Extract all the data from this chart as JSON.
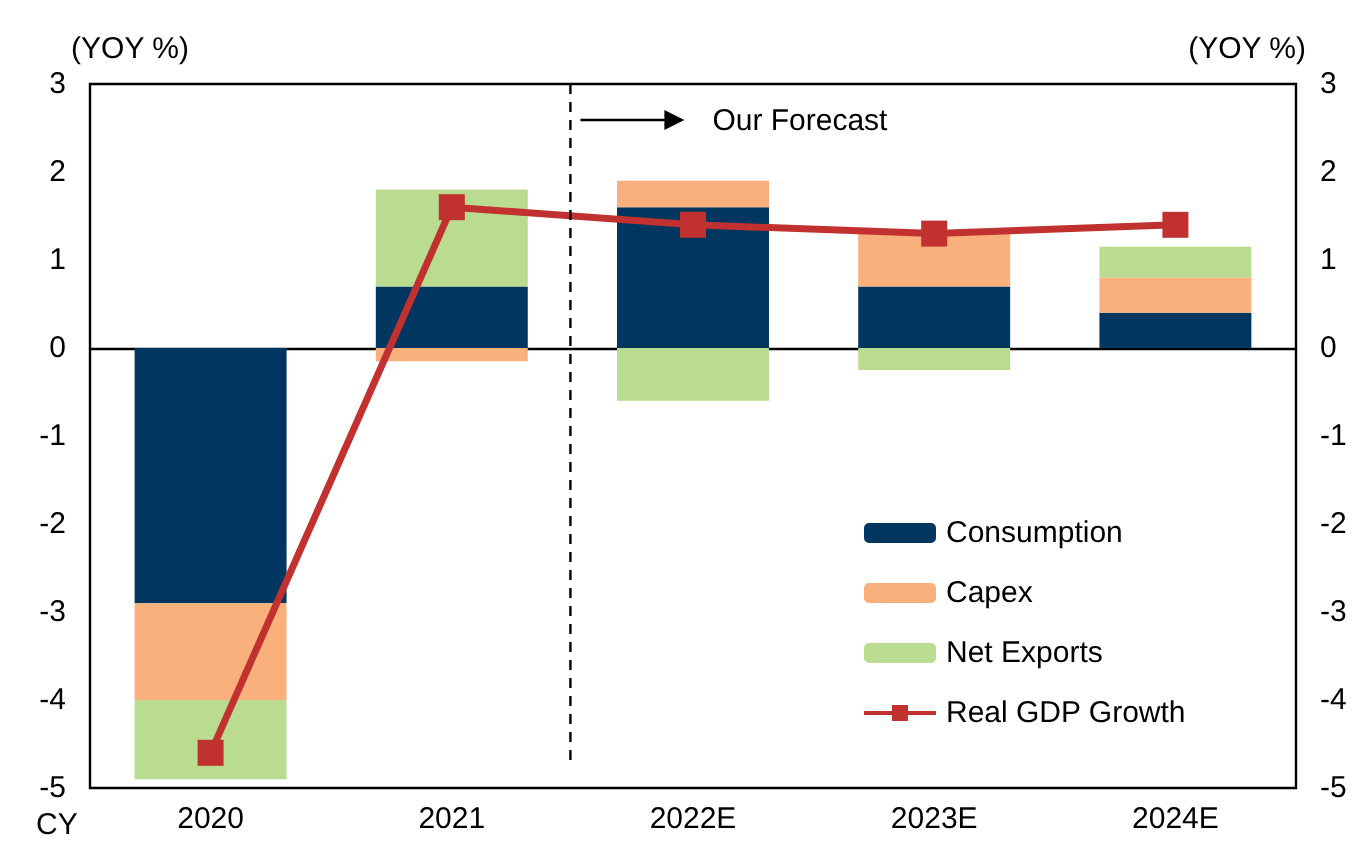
{
  "chart_data": {
    "type": "bar",
    "stacked": true,
    "ylabel": "(YOY %)",
    "y2label": "(YOY %)",
    "categories": [
      "2020",
      "2021",
      "2022E",
      "2023E",
      "2024E"
    ],
    "series": [
      {
        "name": "Consumption",
        "color": "#003660",
        "values": [
          -2.9,
          0.7,
          1.6,
          0.7,
          0.4
        ]
      },
      {
        "name": "Capex",
        "color": "#f9b07c",
        "values": [
          -1.1,
          -0.15,
          0.3,
          0.6,
          0.4
        ]
      },
      {
        "name": "Net Exports",
        "color": "#b9dc91",
        "values": [
          -0.9,
          1.1,
          -0.6,
          -0.25,
          0.35
        ]
      },
      {
        "name": "Real GDP Growth",
        "type": "line",
        "color": "#c0312f",
        "marker": "square",
        "values": [
          -4.6,
          1.6,
          1.4,
          1.3,
          1.4
        ]
      }
    ],
    "ylim": [
      -5,
      3
    ],
    "yticks": [
      -5,
      -4,
      -3,
      -2,
      -1,
      0,
      1,
      2,
      3
    ],
    "y2lim": [
      -5,
      3
    ],
    "y2ticks": [
      -5,
      -4,
      -3,
      -2,
      -1,
      0,
      1,
      2,
      3
    ],
    "ref_lines": [
      {
        "axis": "x",
        "value": "2022E",
        "line_style": "dashed",
        "color": "#000000"
      }
    ],
    "annotations": [
      "Our Forecast",
      "CY"
    ],
    "grid": false,
    "legend": "bottom right"
  }
}
